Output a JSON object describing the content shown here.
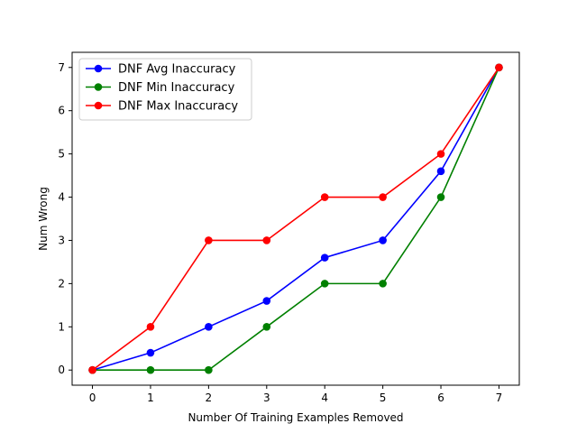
{
  "chart_data": {
    "type": "line",
    "xlabel": "Number Of Training Examples Removed",
    "ylabel": "Num Wrong",
    "x": [
      0,
      1,
      2,
      3,
      4,
      5,
      6,
      7
    ],
    "xlim": [
      -0.35,
      7.35
    ],
    "ylim": [
      -0.35,
      7.35
    ],
    "xticks": [
      "0",
      "1",
      "2",
      "3",
      "4",
      "5",
      "6",
      "7"
    ],
    "yticks": [
      "0",
      "1",
      "2",
      "3",
      "4",
      "5",
      "6",
      "7"
    ],
    "grid": false,
    "legend_position": "upper-left",
    "series": [
      {
        "name": "DNF Avg Inaccuracy",
        "color": "#0000ff",
        "values": [
          0,
          0.4,
          1,
          1.6,
          2.6,
          3,
          4.6,
          7
        ]
      },
      {
        "name": "DNF Min Inaccuracy",
        "color": "#008000",
        "values": [
          0,
          0,
          0,
          1,
          2,
          2,
          4,
          7
        ]
      },
      {
        "name": "DNF Max Inaccuracy",
        "color": "#ff0000",
        "values": [
          0,
          1,
          3,
          3,
          4,
          4,
          5,
          7
        ]
      }
    ]
  }
}
